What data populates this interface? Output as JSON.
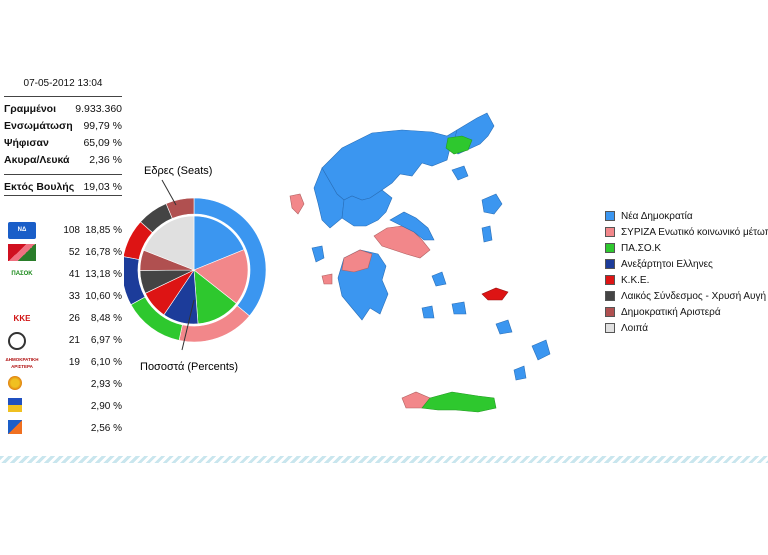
{
  "timestamp": "07-05-2012 13:04",
  "stats": [
    {
      "label": "Γραμμένοι",
      "value": "9.933.360"
    },
    {
      "label": "Ενσωμάτωση",
      "value": "99,79 %"
    },
    {
      "label": "Ψήφισαν",
      "value": "65,09 %"
    },
    {
      "label": "Ακυρα/Λευκά",
      "value": "2,36 %"
    }
  ],
  "outside": {
    "label": "Εκτός Βουλής",
    "value": "19,03 %"
  },
  "parties": [
    {
      "logo": "nd-logo",
      "logo_text": "ΝΔ",
      "seats": "108",
      "pct": "18,85 %"
    },
    {
      "logo": "syriza-logo",
      "logo_text": "",
      "seats": "52",
      "pct": "16,78 %"
    },
    {
      "logo": "pasok-logo",
      "logo_text": "ΠΑΣΟΚ",
      "seats": "41",
      "pct": "13,18 %"
    },
    {
      "logo": "anel-logo",
      "logo_text": "",
      "seats": "33",
      "pct": "10,60 %"
    },
    {
      "logo": "kke-logo",
      "logo_text": "ΚΚΕ",
      "seats": "26",
      "pct": "8,48 %"
    },
    {
      "logo": "xa-logo",
      "logo_text": "",
      "seats": "21",
      "pct": "6,97 %"
    },
    {
      "logo": "dimar-logo",
      "logo_text": "ΔΗΜΟΚΡΑΤΙΚΗ ΑΡΙΣΤΕΡΑ",
      "seats": "19",
      "pct": "6,10 %"
    },
    {
      "logo": "greens-logo",
      "logo_text": "",
      "seats": "",
      "pct": "2,93 %"
    },
    {
      "logo": "laos-logo",
      "logo_text": "",
      "seats": "",
      "pct": "2,90 %"
    },
    {
      "logo": "dimsym-logo",
      "logo_text": "",
      "seats": "",
      "pct": "2,56 %"
    }
  ],
  "chart_data": {
    "type": "pie",
    "title": "",
    "labels": {
      "outer": "Εδρες (Seats)",
      "inner": "Ποσοστά (Percents)"
    },
    "categories": [
      "Νέα Δημοκρατία",
      "ΣΥΡΙΖΑ Ενωτικό κοινωνικό μέτωπο",
      "ΠΑ.ΣΟ.Κ",
      "Ανεξάρτητοι Ελληνες",
      "Κ.Κ.Ε.",
      "Λαικός Σύνδεσμος - Χρυσή Αυγή",
      "Δημοκρατική Αριστερά",
      "Λοιπά"
    ],
    "colors": [
      "#3b96f0",
      "#f2878a",
      "#2ec82e",
      "#1c3c9a",
      "#dd1414",
      "#444444",
      "#b05050",
      "#e0e0e0"
    ],
    "series": [
      {
        "name": "Εδρες (Seats)",
        "values": [
          108,
          52,
          41,
          33,
          26,
          21,
          19,
          0
        ]
      },
      {
        "name": "Ποσοστά (Percents)",
        "values": [
          18.85,
          16.78,
          13.18,
          10.6,
          8.48,
          6.97,
          6.1,
          19.03
        ]
      }
    ],
    "legend_position": "right"
  }
}
